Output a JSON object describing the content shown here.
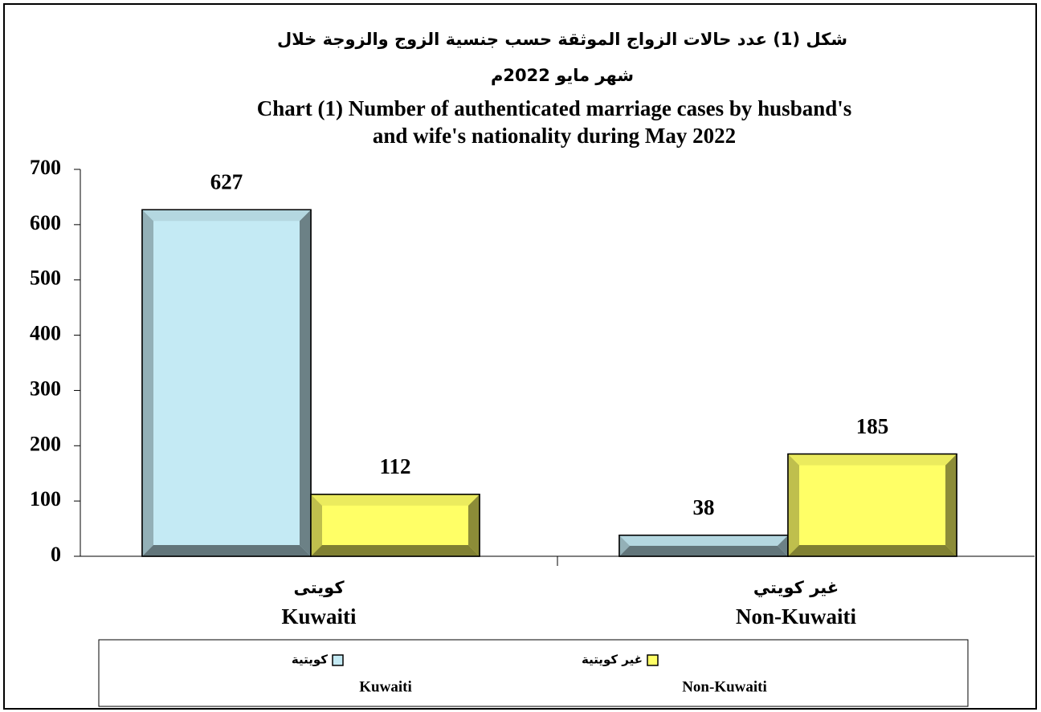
{
  "chart_data": {
    "type": "bar",
    "title": [
      "شكل (1) عدد حالات الزواج الموثقة حسب جنسية الزوج والزوجة خلال",
      "شهر مايو 2022م"
    ],
    "subtitle": [
      "Chart (1) Number of authenticated marriage cases by husband's",
      "and wife's nationality during May 2022"
    ],
    "categories": [
      "كويتى",
      "غير كويتي"
    ],
    "categories_en": [
      "Kuwaiti",
      "Non-Kuwaiti"
    ],
    "series": [
      {
        "name": "كويتية",
        "name_en": "Kuwaiti",
        "color": "#c4eaf4",
        "values": [
          627,
          38
        ]
      },
      {
        "name": "غير كويتية",
        "name_en": "Non-Kuwaiti",
        "color": "#ffff66",
        "values": [
          112,
          185
        ]
      }
    ],
    "ylim": [
      0,
      700
    ],
    "yticks": [
      0,
      100,
      200,
      300,
      400,
      500,
      600,
      700
    ],
    "grid": false,
    "legend": "bottom"
  }
}
